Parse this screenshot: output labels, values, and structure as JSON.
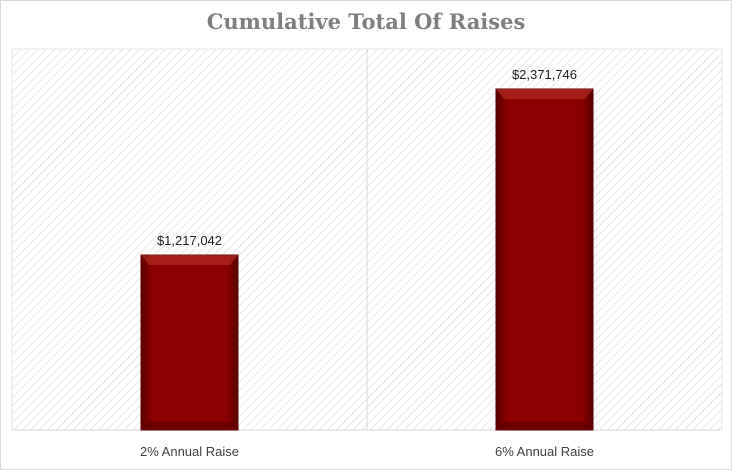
{
  "colors": {
    "bar": "#8b0000",
    "bar_highlight": "#c0392b",
    "bar_shadow": "#5a0000",
    "title": "#7f7f7f",
    "hatch": "#d0d0d0",
    "gridline": "#d9d9d9"
  },
  "chart_data": {
    "type": "bar",
    "title": "Cumulative Total Of Raises",
    "categories": [
      "2% Annual Raise",
      "6% Annual Raise"
    ],
    "values": [
      1217042,
      2371746
    ],
    "data_labels": [
      "$1,217,042",
      "$2,371,746"
    ],
    "xlabel": "",
    "ylabel": "",
    "ylim": [
      0,
      2650000
    ],
    "grid": false,
    "legend": "none"
  }
}
